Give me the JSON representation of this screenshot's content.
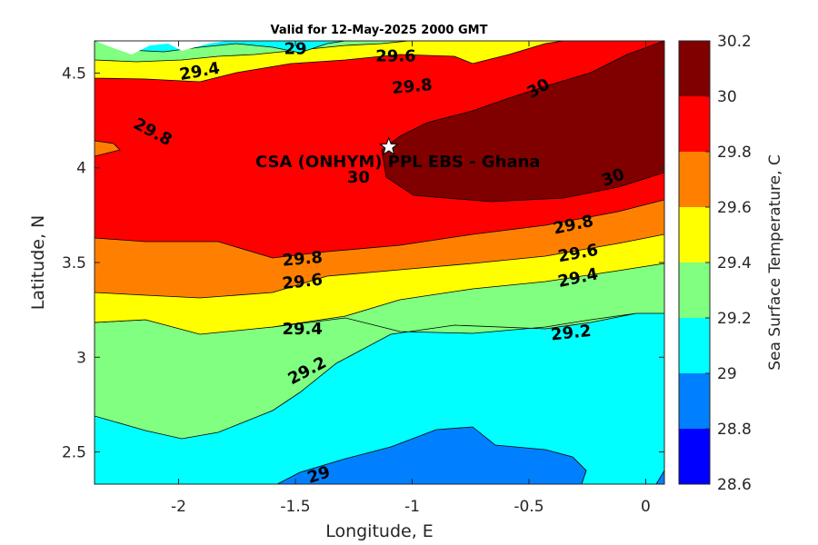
{
  "chart_data": {
    "type": "heatmap",
    "subtype": "filled-contour",
    "title": "Valid for 12-May-2025 2000 GMT",
    "xlabel": "Longitude, E",
    "ylabel": "Latitude, N",
    "xlim": [
      -2.36,
      0.08
    ],
    "ylim": [
      2.33,
      4.67
    ],
    "xticks": [
      -2,
      -1.5,
      -1,
      -0.5,
      0
    ],
    "xtick_labels": [
      "-2",
      "-1.5",
      "-1",
      "-0.5",
      "0"
    ],
    "yticks": [
      2.5,
      3,
      3.5,
      4,
      4.5
    ],
    "ytick_labels": [
      "2.5",
      "3",
      "3.5",
      "4",
      "4.5"
    ],
    "colorbar": {
      "label": "Sea Surface Temperature, C",
      "range": [
        28.6,
        30.2
      ],
      "ticks": [
        28.6,
        28.8,
        29,
        29.2,
        29.4,
        29.6,
        29.8,
        30,
        30.2
      ],
      "tick_labels": [
        "28.6",
        "28.8",
        "29",
        "29.2",
        "29.4",
        "29.6",
        "29.8",
        "30",
        "30.2"
      ],
      "colors": [
        "#0000ff",
        "#0080ff",
        "#00ffff",
        "#80ff80",
        "#ffff00",
        "#ff8000",
        "#ff0000",
        "#800000"
      ]
    },
    "contour_labels": [
      {
        "text": "29",
        "x": -1.5,
        "y": 4.63,
        "angle": 0
      },
      {
        "text": "29.6",
        "x": -1.07,
        "y": 4.59,
        "angle": 0
      },
      {
        "text": "29.4",
        "x": -1.91,
        "y": 4.51,
        "angle": -10
      },
      {
        "text": "29.8",
        "x": -1.0,
        "y": 4.43,
        "angle": -5
      },
      {
        "text": "30",
        "x": -0.46,
        "y": 4.42,
        "angle": -30
      },
      {
        "text": "29.8",
        "x": -2.11,
        "y": 4.19,
        "angle": 28
      },
      {
        "text": "30",
        "x": -1.23,
        "y": 3.95,
        "angle": 0
      },
      {
        "text": "30",
        "x": -0.14,
        "y": 3.95,
        "angle": -20
      },
      {
        "text": "29.8",
        "x": -0.31,
        "y": 3.7,
        "angle": -12
      },
      {
        "text": "29.8",
        "x": -1.47,
        "y": 3.52,
        "angle": -5
      },
      {
        "text": "29.6",
        "x": -0.29,
        "y": 3.55,
        "angle": -10
      },
      {
        "text": "29.6",
        "x": -1.47,
        "y": 3.4,
        "angle": -6
      },
      {
        "text": "29.4",
        "x": -0.29,
        "y": 3.42,
        "angle": -12
      },
      {
        "text": "29.4",
        "x": -1.47,
        "y": 3.15,
        "angle": 0
      },
      {
        "text": "29.2",
        "x": -0.32,
        "y": 3.13,
        "angle": -6
      },
      {
        "text": "29.2",
        "x": -1.45,
        "y": 2.93,
        "angle": -28
      },
      {
        "text": "29",
        "x": -1.4,
        "y": 2.38,
        "angle": -18
      }
    ],
    "site": {
      "name": "CSA (ONHYM) PPL EBS  - Ghana",
      "x": -1.1,
      "y": 4.11
    }
  }
}
